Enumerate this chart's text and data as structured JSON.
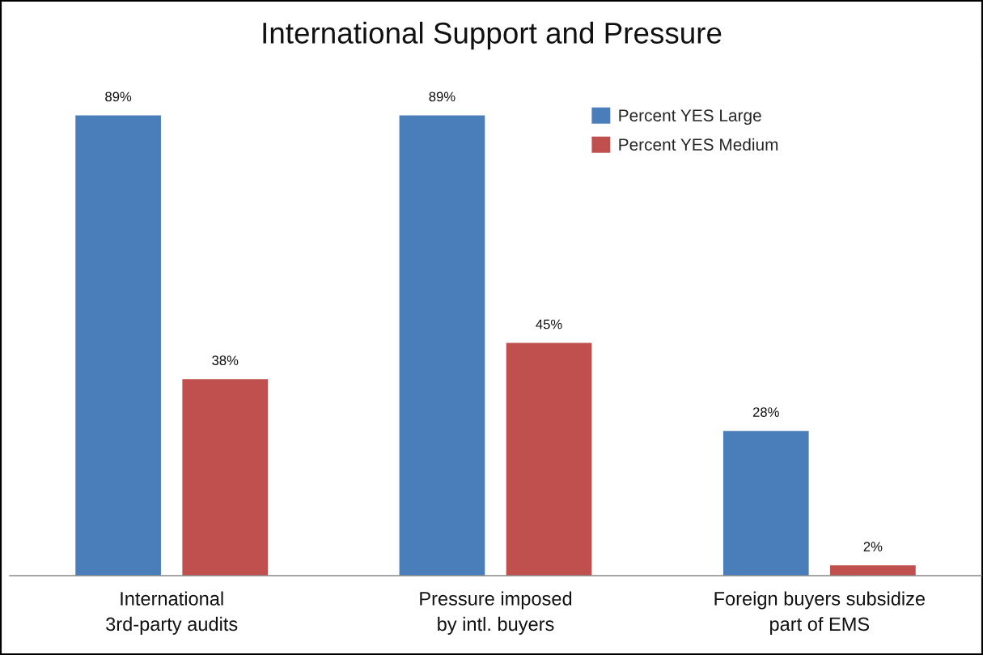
{
  "chart_data": {
    "type": "bar",
    "title": "International Support and Pressure",
    "categories": [
      "International\n3rd-party audits",
      "Pressure imposed\nby intl. buyers",
      "Foreign buyers subsidize\npart of EMS"
    ],
    "series": [
      {
        "name": "Percent YES Large",
        "color": "#4a7ebb",
        "values": [
          89,
          89,
          28
        ],
        "value_labels": [
          "89%",
          "89%",
          "28%"
        ]
      },
      {
        "name": "Percent YES Medium",
        "color": "#c0504d",
        "values": [
          38,
          45,
          2
        ],
        "value_labels": [
          "38%",
          "45%",
          "2%"
        ]
      }
    ],
    "legend": "top right",
    "tick_labels": "x"
  }
}
